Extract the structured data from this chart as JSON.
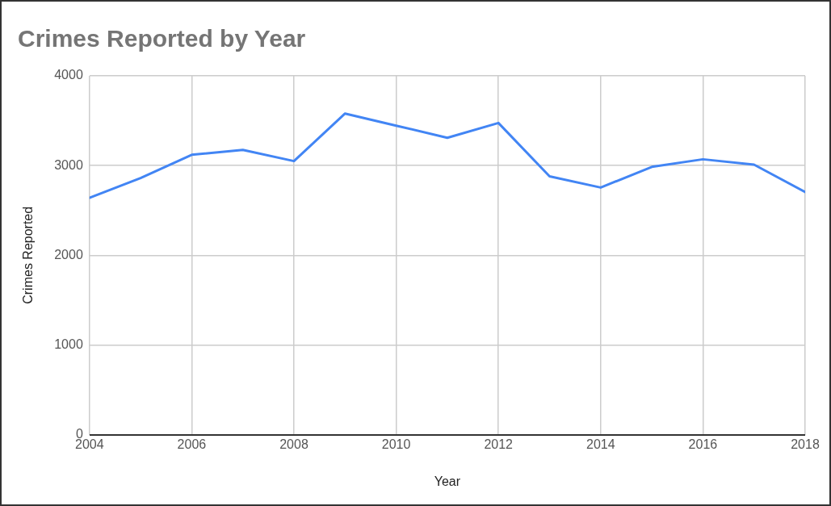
{
  "chart_data": {
    "type": "line",
    "title": "Crimes Reported by Year",
    "xlabel": "Year",
    "ylabel": "Crimes Reported",
    "x": [
      2004,
      2005,
      2006,
      2007,
      2008,
      2009,
      2010,
      2011,
      2012,
      2013,
      2014,
      2015,
      2016,
      2017,
      2018
    ],
    "series": [
      {
        "color": "#4285f4",
        "values": [
          2640,
          2860,
          3120,
          3175,
          3050,
          3580,
          3445,
          3310,
          3475,
          2880,
          2755,
          2985,
          3070,
          3010,
          2705
        ]
      }
    ],
    "xlim": [
      2004,
      2018
    ],
    "xticks": [
      2004,
      2006,
      2008,
      2010,
      2012,
      2014,
      2016,
      2018
    ],
    "ylim": [
      0,
      4000
    ],
    "yticks": [
      0,
      1000,
      2000,
      3000,
      4000
    ],
    "grid": true,
    "legend": false,
    "marker": "none",
    "line_style": "solid"
  }
}
